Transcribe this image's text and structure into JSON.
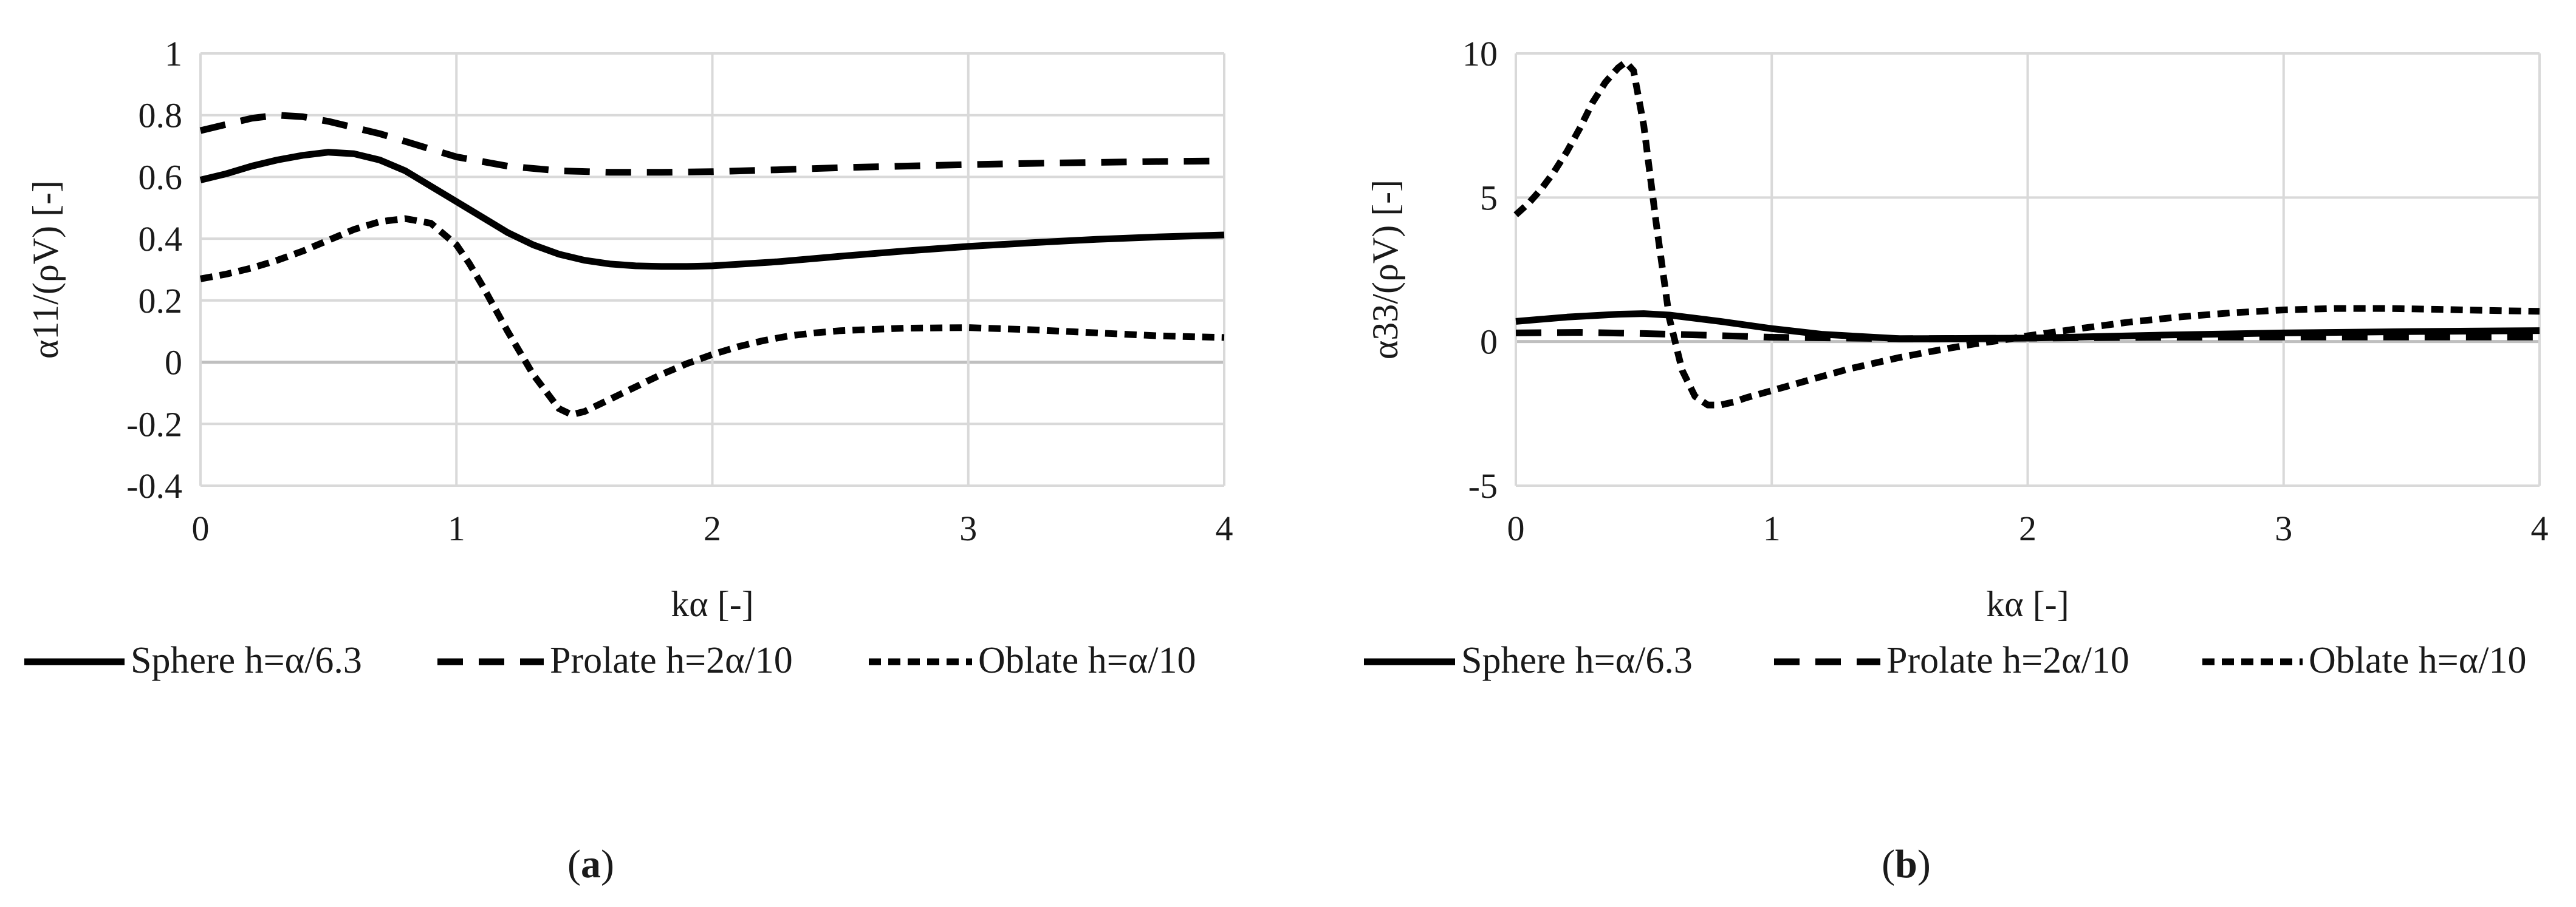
{
  "chart_data": [
    {
      "type": "line",
      "panel_label": "a",
      "xlabel": "kα [-]",
      "ylabel": "α11/(ρV) [-]",
      "xlim": [
        0,
        4
      ],
      "ylim": [
        -0.4,
        1
      ],
      "x_ticks": [
        0,
        1,
        2,
        3,
        4
      ],
      "x_tick_labels": [
        "0",
        "1",
        "2",
        "3",
        "4"
      ],
      "y_ticks": [
        -0.4,
        -0.2,
        0,
        0.2,
        0.4,
        0.6,
        0.8,
        1
      ],
      "y_tick_labels": [
        "-0.4",
        "-0.2",
        "0",
        "0.2",
        "0.4",
        "0.6",
        "0.8",
        "1"
      ],
      "grid": true,
      "legend_position": "bottom",
      "series": [
        {
          "name": "Sphere h=α/6.3",
          "style": "solid",
          "x": [
            0,
            0.1,
            0.2,
            0.3,
            0.4,
            0.5,
            0.6,
            0.7,
            0.8,
            0.9,
            1.0,
            1.1,
            1.2,
            1.3,
            1.4,
            1.5,
            1.6,
            1.7,
            1.8,
            1.9,
            2.0,
            2.25,
            2.5,
            2.75,
            3.0,
            3.25,
            3.5,
            3.75,
            4.0
          ],
          "values": [
            0.59,
            0.61,
            0.635,
            0.655,
            0.67,
            0.68,
            0.675,
            0.655,
            0.62,
            0.57,
            0.52,
            0.47,
            0.42,
            0.38,
            0.35,
            0.33,
            0.318,
            0.312,
            0.31,
            0.31,
            0.312,
            0.325,
            0.343,
            0.36,
            0.375,
            0.387,
            0.398,
            0.406,
            0.412
          ]
        },
        {
          "name": "Prolate h=2α/10",
          "style": "dashed",
          "x": [
            0,
            0.1,
            0.2,
            0.3,
            0.4,
            0.5,
            0.6,
            0.7,
            0.8,
            0.9,
            1.0,
            1.2,
            1.4,
            1.6,
            1.8,
            2.0,
            2.25,
            2.5,
            2.75,
            3.0,
            3.25,
            3.5,
            3.75,
            4.0
          ],
          "values": [
            0.75,
            0.77,
            0.79,
            0.8,
            0.795,
            0.78,
            0.76,
            0.74,
            0.715,
            0.69,
            0.665,
            0.635,
            0.62,
            0.615,
            0.615,
            0.617,
            0.623,
            0.63,
            0.635,
            0.64,
            0.644,
            0.647,
            0.65,
            0.652
          ]
        },
        {
          "name": "Oblate h=α/10",
          "style": "dotted",
          "x": [
            0,
            0.1,
            0.2,
            0.3,
            0.4,
            0.5,
            0.6,
            0.7,
            0.8,
            0.9,
            1.0,
            1.05,
            1.1,
            1.2,
            1.3,
            1.4,
            1.45,
            1.5,
            1.6,
            1.7,
            1.8,
            1.9,
            2.0,
            2.1,
            2.2,
            2.3,
            2.4,
            2.5,
            2.75,
            3.0,
            3.25,
            3.5,
            3.75,
            4.0
          ],
          "values": [
            0.27,
            0.285,
            0.305,
            0.33,
            0.36,
            0.395,
            0.43,
            0.455,
            0.465,
            0.45,
            0.38,
            0.32,
            0.25,
            0.1,
            -0.04,
            -0.15,
            -0.17,
            -0.16,
            -0.12,
            -0.08,
            -0.04,
            -0.005,
            0.025,
            0.05,
            0.07,
            0.085,
            0.095,
            0.102,
            0.11,
            0.112,
            0.105,
            0.095,
            0.085,
            0.08
          ]
        }
      ]
    },
    {
      "type": "line",
      "panel_label": "b",
      "xlabel": "kα [-]",
      "ylabel": "α33/(ρV) [-]",
      "xlim": [
        0,
        4
      ],
      "ylim": [
        -5,
        10
      ],
      "x_ticks": [
        0,
        1,
        2,
        3,
        4
      ],
      "x_tick_labels": [
        "0",
        "1",
        "2",
        "3",
        "4"
      ],
      "y_ticks": [
        -5,
        0,
        5,
        10
      ],
      "y_tick_labels": [
        "-5",
        "0",
        "5",
        "10"
      ],
      "grid": true,
      "legend_position": "bottom",
      "series": [
        {
          "name": "Sphere h=α/6.3",
          "style": "solid",
          "x": [
            0,
            0.2,
            0.4,
            0.5,
            0.6,
            0.8,
            1.0,
            1.2,
            1.5,
            2.0,
            2.5,
            3.0,
            3.5,
            4.0
          ],
          "values": [
            0.7,
            0.85,
            0.95,
            0.97,
            0.92,
            0.7,
            0.45,
            0.25,
            0.1,
            0.12,
            0.22,
            0.3,
            0.35,
            0.38
          ]
        },
        {
          "name": "Prolate h=2α/10",
          "style": "dashed",
          "x": [
            0,
            0.25,
            0.5,
            0.75,
            1.0,
            1.5,
            2.0,
            2.5,
            3.0,
            3.5,
            4.0
          ],
          "values": [
            0.3,
            0.32,
            0.28,
            0.22,
            0.15,
            0.1,
            0.12,
            0.15,
            0.16,
            0.16,
            0.16
          ]
        },
        {
          "name": "Oblate h=α/10",
          "style": "dotted",
          "x": [
            0,
            0.05,
            0.1,
            0.15,
            0.2,
            0.25,
            0.3,
            0.35,
            0.4,
            0.43,
            0.46,
            0.5,
            0.55,
            0.6,
            0.65,
            0.7,
            0.75,
            0.8,
            0.85,
            0.9,
            1.0,
            1.1,
            1.2,
            1.3,
            1.4,
            1.5,
            1.6,
            1.7,
            1.8,
            1.9,
            2.0,
            2.2,
            2.4,
            2.6,
            2.8,
            3.0,
            3.2,
            3.4,
            3.6,
            3.8,
            4.0
          ],
          "values": [
            4.4,
            4.8,
            5.3,
            5.9,
            6.6,
            7.4,
            8.3,
            9.0,
            9.5,
            9.7,
            9.4,
            7.5,
            4.0,
            0.8,
            -1.0,
            -1.9,
            -2.2,
            -2.2,
            -2.1,
            -1.95,
            -1.7,
            -1.45,
            -1.2,
            -0.95,
            -0.75,
            -0.55,
            -0.38,
            -0.22,
            -0.07,
            0.05,
            0.2,
            0.45,
            0.68,
            0.86,
            1.0,
            1.1,
            1.15,
            1.15,
            1.12,
            1.08,
            1.05
          ]
        }
      ]
    }
  ]
}
